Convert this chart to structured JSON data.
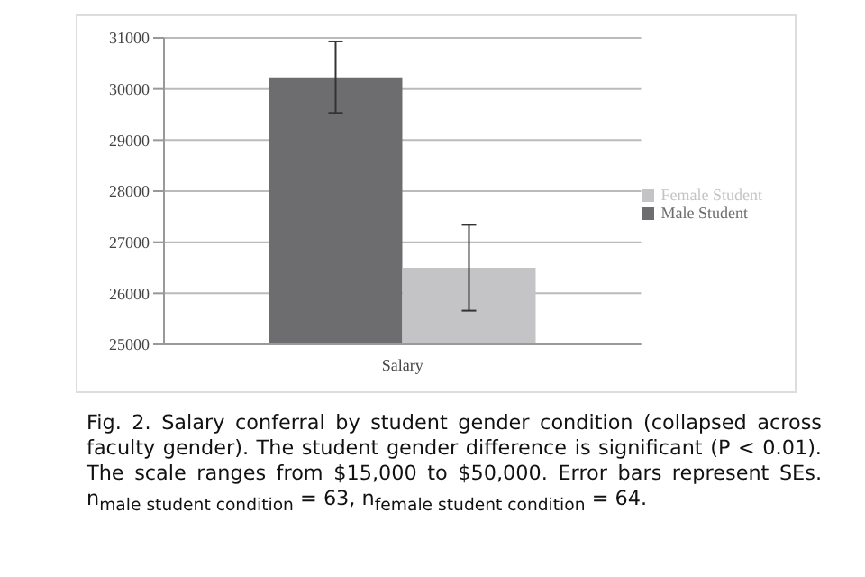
{
  "chart_data": {
    "type": "bar",
    "categories": [
      "Salary"
    ],
    "series": [
      {
        "name": "Male Student",
        "color": "#6d6d70",
        "values": [
          30230
        ],
        "errors": [
          700
        ]
      },
      {
        "name": "Female Student",
        "color": "#c4c4c6",
        "values": [
          26500
        ],
        "errors": [
          840
        ]
      }
    ],
    "ylim": [
      25000,
      31000
    ],
    "yticks": [
      25000,
      26000,
      27000,
      28000,
      29000,
      30000,
      31000
    ],
    "grid": "y",
    "legend": "right",
    "annotations": [
      "Fig. 2.    Salary conferral by student gender condition (collapsed across faculty gender). The student gender difference is significant (P < 0.01). The scale ranges from $15,000 to $50,000. Error bars represent SEs. n$_{male student condition}$ = 63, n$_{female student condition}$ = 64."
    ]
  }
}
